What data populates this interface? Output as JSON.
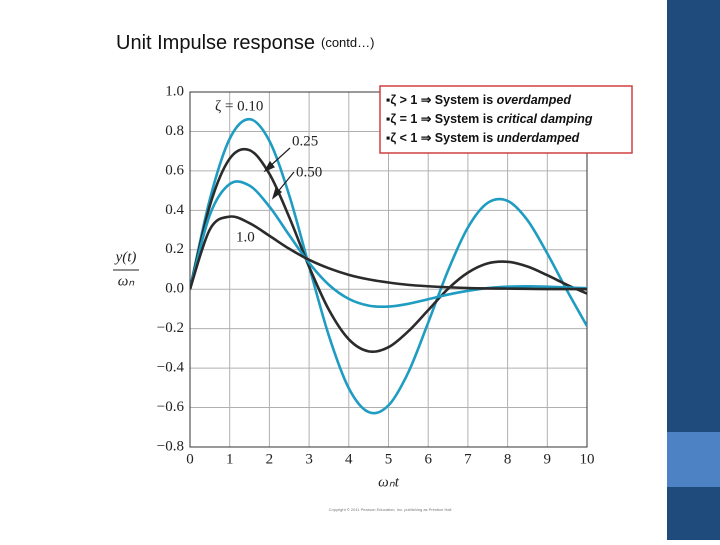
{
  "slide": {
    "title": "Unit Impulse response",
    "title_note": "(contd…)",
    "copyright": "Copyright © 2011 Pearson Education, Inc. publishing as Prentice Hall",
    "notes": [
      {
        "lead": "▪ζ > 1 ⇒ System is ",
        "emph": "overdamped"
      },
      {
        "lead": "▪ζ = 1 ⇒ System is ",
        "emph": "critical damping"
      },
      {
        "lead": "▪ζ < 1 ⇒ System is ",
        "emph": "underdamped"
      }
    ]
  },
  "chart_data": {
    "type": "line",
    "xlabel": "ωₙt",
    "ylabel": [
      "y(t)",
      "ωₙ"
    ],
    "grid": true,
    "x": [
      0,
      0.5,
      1,
      1.5,
      2,
      2.5,
      3,
      3.5,
      4,
      4.5,
      5,
      5.5,
      6,
      6.5,
      7,
      7.5,
      8,
      8.5,
      9,
      9.5,
      10
    ],
    "xlim": [
      0,
      10
    ],
    "xticks": [
      0,
      1,
      2,
      3,
      4,
      5,
      6,
      7,
      8,
      9,
      10
    ],
    "ylim": [
      -0.8,
      1.0
    ],
    "yticks": [
      {
        "value": -0.8,
        "label": "−0.8"
      },
      {
        "value": -0.6,
        "label": "−0.6"
      },
      {
        "value": -0.4,
        "label": "−0.4"
      },
      {
        "value": -0.2,
        "label": "−0.2"
      },
      {
        "value": 0,
        "label": "0.0"
      },
      {
        "value": 0.2,
        "label": "0.2"
      },
      {
        "value": 0.4,
        "label": "0.4"
      },
      {
        "value": 0.6,
        "label": "0.6"
      },
      {
        "value": 0.8,
        "label": "0.8"
      },
      {
        "value": 1.0,
        "label": "1.0"
      }
    ],
    "series": [
      {
        "name": "ζ = 0.10",
        "color": "#1e9cc2",
        "values": [
          0,
          0.456,
          0.763,
          0.862,
          0.752,
          0.476,
          0.116,
          -0.237,
          -0.502,
          -0.623,
          -0.589,
          -0.421,
          -0.169,
          0.095,
          0.313,
          0.438,
          0.448,
          0.35,
          0.181,
          -0.008,
          -0.187
        ]
      },
      {
        "name": "0.25",
        "color": "#2b2b2b",
        "values": [
          0,
          0.424,
          0.662,
          0.705,
          0.585,
          0.365,
          0.114,
          -0.105,
          -0.254,
          -0.315,
          -0.294,
          -0.213,
          -0.106,
          0.002,
          0.084,
          0.131,
          0.139,
          0.115,
          0.071,
          0.022,
          -0.022
        ]
      },
      {
        "name": "0.50",
        "color": "#1e9cc2",
        "values": [
          0,
          0.377,
          0.533,
          0.525,
          0.419,
          0.274,
          0.133,
          0.022,
          -0.049,
          -0.083,
          -0.088,
          -0.074,
          -0.051,
          -0.027,
          -0.008,
          0.006,
          0.013,
          0.015,
          0.013,
          0.009,
          0.005
        ]
      },
      {
        "name": "1.0",
        "color": "#2b2b2b",
        "values": [
          0,
          0.303,
          0.368,
          0.335,
          0.271,
          0.205,
          0.149,
          0.106,
          0.073,
          0.05,
          0.034,
          0.022,
          0.015,
          0.01,
          0.006,
          0.004,
          0.003,
          0.002,
          0.001,
          0.001,
          0.0
        ]
      }
    ]
  }
}
